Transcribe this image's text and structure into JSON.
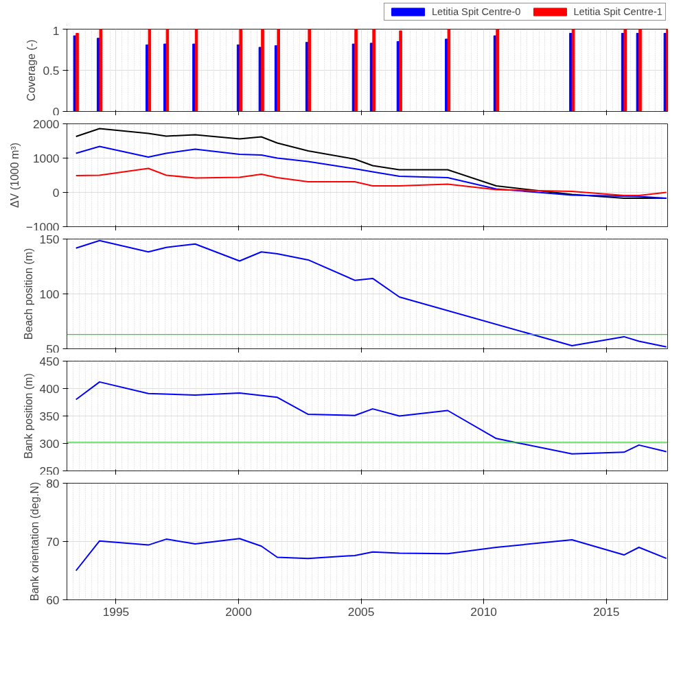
{
  "chart_data": [
    {
      "type": "bar",
      "ylabel": "Coverage (-)",
      "xlim": [
        1993,
        2017.5
      ],
      "xticks": [
        1995,
        2000,
        2005,
        2010,
        2015
      ],
      "ylim": [
        0,
        1
      ],
      "yticks": [
        0,
        0.5,
        1
      ],
      "grid": true,
      "tick_labels": "y",
      "legend": "top",
      "x": [
        1993.37,
        1994.33,
        1996.32,
        1997.05,
        1998.23,
        2000.04,
        2000.93,
        2001.58,
        2002.84,
        2004.74,
        2005.47,
        2006.56,
        2008.53,
        2010.51,
        2013.6,
        2015.72,
        2016.33,
        2017.45
      ],
      "series": [
        {
          "name": "Letitia Spit Centre-0",
          "color": "#0000ff",
          "values": [
            0.92,
            0.89,
            0.81,
            0.82,
            0.82,
            0.81,
            0.78,
            0.8,
            0.84,
            0.82,
            0.83,
            0.85,
            0.88,
            0.92,
            0.95,
            0.95,
            0.95,
            0.95
          ]
        },
        {
          "name": "Letitia Spit Centre-1",
          "color": "#ff0000",
          "values": [
            0.95,
            1,
            1,
            1,
            1,
            1,
            1,
            1,
            1,
            1,
            1,
            0.98,
            1,
            1,
            1,
            1,
            1,
            1
          ]
        }
      ]
    },
    {
      "type": "line",
      "ylabel": "ΔV (1000 m³)",
      "xlim": [
        1993,
        2017.5
      ],
      "xticks": [
        1995,
        2000,
        2005,
        2010,
        2015
      ],
      "ylim": [
        -1000,
        2000
      ],
      "yticks": [
        -1000,
        0,
        1000,
        2000
      ],
      "grid": true,
      "tick_labels": "y",
      "x": [
        1993.37,
        1994.33,
        1996.32,
        1997.05,
        1998.23,
        2000.04,
        2000.93,
        2001.58,
        2002.84,
        2004.74,
        2005.47,
        2006.56,
        2008.53,
        2010.51,
        2013.6,
        2015.72,
        2016.33,
        2017.45
      ],
      "series": [
        {
          "color": "#000000",
          "values": [
            1630,
            1860,
            1720,
            1640,
            1680,
            1560,
            1620,
            1440,
            1210,
            970,
            780,
            660,
            660,
            190,
            -60,
            -170,
            -170,
            -170
          ]
        },
        {
          "color": "#0000ff",
          "values": [
            1140,
            1340,
            1030,
            1140,
            1260,
            1110,
            1090,
            1000,
            900,
            690,
            600,
            470,
            430,
            100,
            -80,
            -110,
            -120,
            -170
          ]
        },
        {
          "color": "#ff0000",
          "values": [
            490,
            500,
            700,
            500,
            420,
            440,
            530,
            430,
            310,
            310,
            190,
            190,
            240,
            80,
            30,
            -90,
            -90,
            0
          ]
        }
      ]
    },
    {
      "type": "line",
      "ylabel": "Beach position (m)",
      "xlim": [
        1993,
        2017.5
      ],
      "xticks": [
        1995,
        2000,
        2005,
        2010,
        2015
      ],
      "ylim": [
        50,
        150
      ],
      "yticks": [
        50,
        100,
        150
      ],
      "grid": true,
      "tick_labels": "y",
      "ref_lines": [
        {
          "axis": "y",
          "value": 63,
          "label": null,
          "color": "#33cc33"
        }
      ],
      "series": [
        {
          "color": "#0000ff",
          "x": [
            1993.37,
            1994.33,
            1996.32,
            1997.05,
            1998.23,
            2000.04,
            2000.93,
            2001.58,
            2002.84,
            2004.74,
            2005.47,
            2006.56,
            2013.6,
            2015.72,
            2016.33,
            2017.45
          ],
          "values": [
            141.7,
            148.6,
            138.3,
            142.4,
            145.5,
            130,
            138.3,
            136.6,
            131,
            112.4,
            114.1,
            97.2,
            52.8,
            61,
            56.9,
            51.7
          ]
        }
      ]
    },
    {
      "type": "line",
      "ylabel": "Bank position (m)",
      "xlim": [
        1993,
        2017.5
      ],
      "xticks": [
        1995,
        2000,
        2005,
        2010,
        2015
      ],
      "ylim": [
        250,
        450
      ],
      "yticks": [
        250,
        300,
        350,
        400,
        450
      ],
      "grid": true,
      "tick_labels": "y",
      "ref_lines": [
        {
          "axis": "y",
          "value": 302,
          "label": null,
          "color": "#33cc33"
        }
      ],
      "series": [
        {
          "color": "#0000ff",
          "x": [
            1993.37,
            1994.33,
            1996.32,
            1998.23,
            2000.04,
            2001.58,
            2002.84,
            2004.74,
            2005.47,
            2006.56,
            2008.53,
            2010.51,
            2013.6,
            2015.72,
            2016.33,
            2017.45
          ],
          "values": [
            380,
            412,
            391,
            388,
            392,
            384,
            353,
            351,
            363,
            350,
            360,
            309,
            281,
            284,
            297,
            285
          ]
        }
      ]
    },
    {
      "type": "line",
      "ylabel": "Bank orientation (deg.N)",
      "xlim": [
        1993,
        2017.5
      ],
      "xticks": [
        1995,
        2000,
        2005,
        2010,
        2015
      ],
      "ylim": [
        60,
        80
      ],
      "yticks": [
        60,
        70,
        80
      ],
      "grid": true,
      "x": [
        1993.37,
        1994.33,
        1996.32,
        1997.05,
        1998.23,
        2000.04,
        2000.93,
        2001.58,
        2002.84,
        2004.74,
        2005.47,
        2006.56,
        2008.53,
        2010.51,
        2013.6,
        2015.72,
        2016.33,
        2017.45
      ],
      "series": [
        {
          "color": "#0000ff",
          "values": [
            65,
            70.1,
            69.4,
            70.4,
            69.6,
            70.5,
            69.2,
            67.3,
            67.1,
            67.6,
            68.2,
            68,
            67.9,
            69,
            70.3,
            67.7,
            69,
            67.1
          ]
        }
      ]
    }
  ]
}
